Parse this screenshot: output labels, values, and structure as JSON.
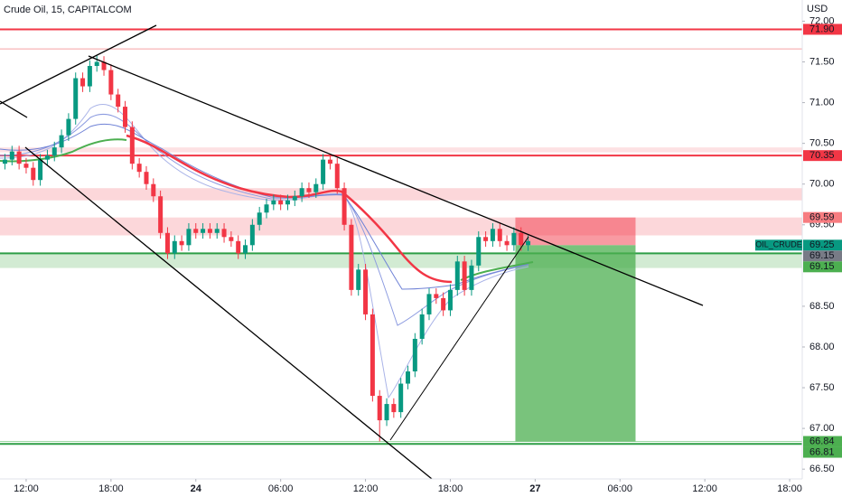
{
  "chart_data": {
    "type": "candlestick",
    "title": "Crude Oil, 15, CAPITALCOM",
    "currency": "USD",
    "symbol": "OIL_CRUDE",
    "up_color": "#089981",
    "down_color": "#f23645",
    "xlim": [
      -1.85,
      54.89
    ],
    "ylim": [
      66.38,
      72.26
    ],
    "xticks": [
      {
        "value": 0,
        "label": "12:00"
      },
      {
        "value": 6,
        "label": "18:00"
      },
      {
        "value": 12,
        "label": "24"
      },
      {
        "value": 18,
        "label": "06:00"
      },
      {
        "value": 24,
        "label": "12:00"
      },
      {
        "value": 30,
        "label": "18:00"
      },
      {
        "value": 36,
        "label": "27"
      },
      {
        "value": 42,
        "label": "06:00"
      },
      {
        "value": 48,
        "label": "12:00"
      },
      {
        "value": 54,
        "label": "18:00"
      }
    ],
    "yticks": [
      {
        "value": 72,
        "label": "72.00"
      },
      {
        "value": 71.5,
        "label": "71.50"
      },
      {
        "value": 71,
        "label": "71.00"
      },
      {
        "value": 70.5,
        "label": "70.50"
      },
      {
        "value": 70,
        "label": "70.00"
      },
      {
        "value": 69.5,
        "label": "69.50"
      },
      {
        "value": 68.5,
        "label": "68.50"
      },
      {
        "value": 68,
        "label": "68.00"
      },
      {
        "value": 67.5,
        "label": "67.50"
      },
      {
        "value": 67,
        "label": "67.00"
      },
      {
        "value": 66.5,
        "label": "66.50"
      }
    ],
    "x": [
      -1.5,
      -1,
      -0.5,
      0,
      0.5,
      1,
      1.5,
      2,
      2.5,
      3,
      3.5,
      4,
      4.5,
      5,
      5.5,
      6,
      6.5,
      7,
      7.5,
      8,
      8.5,
      9,
      9.5,
      10,
      10.5,
      11,
      11.5,
      12,
      12.5,
      13,
      13.5,
      14,
      14.5,
      15,
      15.5,
      16,
      16.5,
      17,
      17.5,
      18,
      18.5,
      19,
      19.5,
      20,
      20.5,
      21,
      21.5,
      22,
      22.5,
      23,
      23.5,
      24,
      24.5,
      25,
      25.5,
      26,
      26.5,
      27,
      27.5,
      28,
      28.5,
      29,
      29.5,
      30,
      30.5,
      31,
      31.5,
      32,
      32.5,
      33,
      33.5,
      34,
      34.5,
      35,
      35.5
    ],
    "open": [
      70.25,
      70.3,
      70.4,
      70.25,
      70.2,
      70.05,
      70.3,
      70.35,
      70.45,
      70.6,
      70.8,
      71.3,
      71.2,
      71.45,
      71.5,
      71.4,
      71.1,
      70.95,
      70.7,
      70.25,
      70.15,
      70.0,
      69.85,
      69.4,
      69.15,
      69.3,
      69.25,
      69.45,
      69.4,
      69.45,
      69.4,
      69.45,
      69.35,
      69.3,
      69.15,
      69.25,
      69.5,
      69.65,
      69.75,
      69.8,
      69.75,
      69.8,
      69.85,
      69.95,
      69.9,
      70.0,
      70.3,
      70.25,
      69.95,
      69.5,
      68.7,
      68.95,
      68.4,
      67.4,
      67.1,
      67.3,
      67.2,
      67.55,
      67.7,
      68.1,
      68.4,
      68.65,
      68.6,
      68.45,
      68.7,
      69.05,
      68.7,
      69.0,
      69.35,
      69.3,
      69.45,
      69.3,
      69.25,
      69.4,
      69.25
    ],
    "high": [
      70.37,
      70.47,
      70.47,
      70.32,
      70.27,
      70.37,
      70.42,
      70.52,
      70.67,
      70.87,
      71.37,
      71.37,
      71.52,
      71.58,
      71.57,
      71.47,
      71.17,
      71.02,
      70.77,
      70.32,
      70.22,
      70.07,
      69.92,
      69.47,
      69.37,
      69.37,
      69.52,
      69.52,
      69.52,
      69.52,
      69.52,
      69.52,
      69.42,
      69.37,
      69.32,
      69.57,
      69.72,
      69.82,
      69.87,
      69.87,
      69.87,
      69.92,
      70.02,
      70.02,
      70.07,
      70.37,
      70.37,
      70.32,
      70.02,
      69.57,
      69.02,
      69.02,
      68.47,
      67.47,
      67.37,
      67.37,
      67.62,
      67.77,
      68.17,
      68.47,
      68.72,
      68.72,
      68.67,
      68.77,
      69.12,
      69.12,
      69.07,
      69.42,
      69.42,
      69.52,
      69.52,
      69.37,
      69.47,
      69.47,
      69.37
    ],
    "low": [
      70.18,
      70.23,
      70.18,
      70.13,
      69.98,
      69.98,
      70.23,
      70.28,
      70.38,
      70.53,
      70.73,
      71.13,
      71.13,
      71.38,
      71.33,
      71.03,
      70.88,
      70.63,
      70.18,
      70.08,
      69.93,
      69.78,
      69.33,
      69.08,
      69.08,
      69.18,
      69.18,
      69.33,
      69.33,
      69.33,
      69.33,
      69.28,
      69.23,
      69.08,
      69.08,
      69.18,
      69.43,
      69.58,
      69.68,
      69.68,
      69.68,
      69.73,
      69.78,
      69.83,
      69.83,
      69.93,
      70.18,
      69.88,
      69.43,
      68.63,
      68.63,
      68.33,
      67.33,
      66.84,
      67.03,
      67.13,
      67.13,
      67.48,
      67.63,
      68.03,
      68.33,
      68.53,
      68.38,
      68.38,
      68.63,
      68.63,
      68.63,
      68.93,
      69.23,
      69.23,
      69.23,
      69.18,
      69.18,
      69.18,
      69.18
    ],
    "close": [
      70.3,
      70.4,
      70.25,
      70.2,
      70.05,
      70.3,
      70.35,
      70.45,
      70.6,
      70.8,
      71.3,
      71.2,
      71.45,
      71.5,
      71.4,
      71.1,
      70.95,
      70.7,
      70.25,
      70.15,
      70.0,
      69.85,
      69.4,
      69.15,
      69.3,
      69.25,
      69.45,
      69.4,
      69.45,
      69.4,
      69.45,
      69.35,
      69.3,
      69.15,
      69.25,
      69.5,
      69.65,
      69.75,
      69.8,
      69.75,
      69.8,
      69.85,
      69.95,
      69.9,
      70.0,
      70.3,
      70.25,
      69.95,
      69.5,
      68.7,
      68.95,
      68.4,
      67.4,
      67.1,
      67.3,
      67.2,
      67.55,
      67.7,
      68.1,
      68.4,
      68.65,
      68.6,
      68.45,
      68.7,
      69.05,
      68.7,
      69.0,
      69.35,
      69.3,
      69.45,
      69.3,
      69.25,
      69.4,
      69.25,
      69.3
    ],
    "levels": [
      {
        "value": 71.9,
        "color": "#f23645",
        "width": 2
      },
      {
        "value": 71.66,
        "color": "#f7a1a5",
        "width": 1
      },
      {
        "value": 70.35,
        "color": "#f23645",
        "width": 2
      },
      {
        "value": 69.15,
        "color": "#2e9e46",
        "width": 2
      },
      {
        "value": 66.84,
        "color": "#9fd8a4",
        "width": 1
      },
      {
        "value": 66.81,
        "color": "#2e9e46",
        "width": 2
      }
    ],
    "zones": [
      {
        "from": 70.45,
        "to": 70.39,
        "color": "rgba(242,54,69,0.15)"
      },
      {
        "from": 69.95,
        "to": 69.8,
        "color": "rgba(242,54,69,0.2)"
      },
      {
        "from": 69.59,
        "to": 69.37,
        "color": "rgba(242,54,69,0.2)"
      },
      {
        "from": 69.15,
        "to": 68.97,
        "color": "rgba(76,175,80,0.25)"
      }
    ],
    "position": {
      "start": 34.6,
      "end": 43.1,
      "entry": 69.25,
      "stop": 69.59,
      "target": 66.84
    },
    "price_labels": [
      {
        "value": 71.9,
        "label": "71.90",
        "color": "#f23645"
      },
      {
        "value": 70.35,
        "label": "70.35",
        "color": "#f23645"
      },
      {
        "value": 69.59,
        "label": "69.59",
        "color": "#f77c80"
      },
      {
        "value": 69.25,
        "label": "69.25",
        "color": "#089981"
      },
      {
        "value": 69.15,
        "label": "69.15",
        "color": "#787b86"
      },
      {
        "value": 69.15,
        "label": "69.15",
        "color": "#4caf50"
      },
      {
        "value": 66.84,
        "label": "66.84",
        "color": "#4caf50"
      },
      {
        "value": 66.81,
        "label": "66.81",
        "color": "#4caf50"
      }
    ]
  }
}
